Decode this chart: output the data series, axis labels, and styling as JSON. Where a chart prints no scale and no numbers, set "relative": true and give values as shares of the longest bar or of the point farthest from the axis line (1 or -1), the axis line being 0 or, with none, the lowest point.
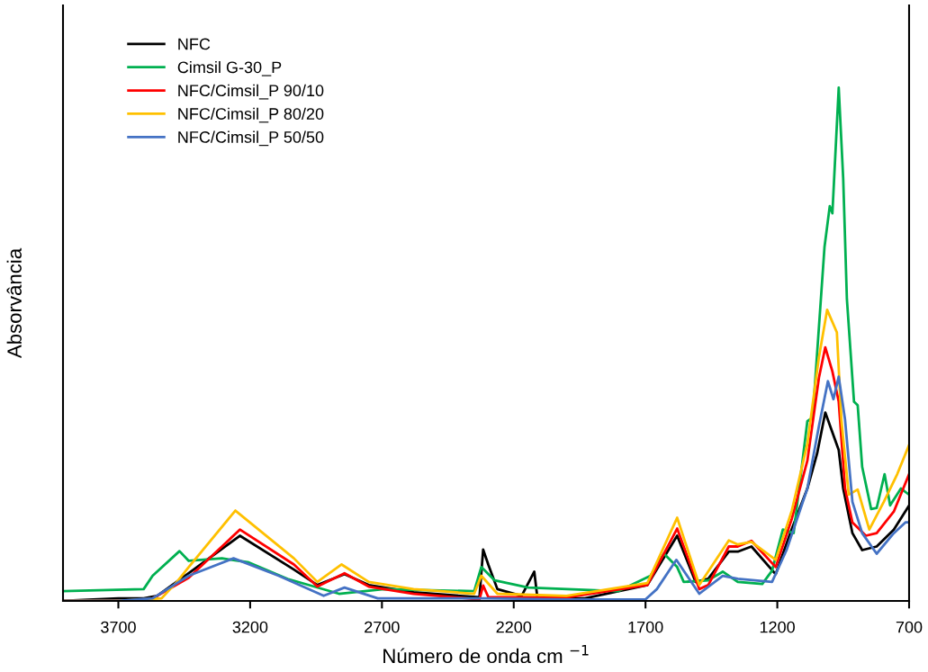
{
  "chart_data": {
    "type": "line",
    "relative": true,
    "xlabel": "Número de onda cm $^{−1}$",
    "ylabel": "Absorvância",
    "xlim": [
      3910,
      700
    ],
    "xticks": [
      3700,
      3200,
      2700,
      2200,
      1700,
      1200,
      700
    ],
    "legend": "top left",
    "grid": false,
    "marker": "none",
    "line_style": "solid",
    "series": [
      {
        "name": "NFC",
        "color": "#000000",
        "x": [
          3910,
          3700,
          3604,
          3553,
          3433,
          3239,
          3034,
          2945,
          2842,
          2750,
          2580,
          2330,
          2316,
          2296,
          2262,
          2170,
          2122,
          2110,
          1930,
          1693,
          1580,
          1510,
          1462,
          1384,
          1350,
          1298,
          1206,
          1151,
          1086,
          1049,
          1018,
          967,
          950,
          915,
          878,
          823,
          758,
          700
        ],
        "values": [
          0.0,
          0.005,
          0.005,
          0.01,
          0.054,
          0.127,
          0.061,
          0.031,
          0.052,
          0.031,
          0.017,
          0.007,
          0.1,
          0.07,
          0.023,
          0.01,
          0.057,
          0.005,
          0.005,
          0.031,
          0.127,
          0.037,
          0.043,
          0.096,
          0.096,
          0.106,
          0.052,
          0.132,
          0.219,
          0.287,
          0.367,
          0.294,
          0.219,
          0.132,
          0.099,
          0.106,
          0.139,
          0.186
        ]
      },
      {
        "name": "Cimsil G-30_P",
        "color": "#00b050",
        "x": [
          3910,
          3604,
          3570,
          3468,
          3433,
          3307,
          3205,
          3058,
          2863,
          2692,
          2350,
          2323,
          2272,
          2145,
          1804,
          1681,
          1630,
          1580,
          1555,
          1462,
          1407,
          1350,
          1257,
          1220,
          1179,
          1138,
          1086,
          1066,
          1021,
          1001,
          991,
          967,
          950,
          936,
          909,
          895,
          878,
          844,
          823,
          793,
          772,
          731,
          700
        ],
        "values": [
          0.019,
          0.023,
          0.049,
          0.097,
          0.078,
          0.083,
          0.075,
          0.043,
          0.014,
          0.023,
          0.019,
          0.066,
          0.04,
          0.026,
          0.019,
          0.049,
          0.092,
          0.066,
          0.037,
          0.04,
          0.057,
          0.037,
          0.033,
          0.059,
          0.139,
          0.132,
          0.35,
          0.357,
          0.689,
          0.769,
          0.755,
          1.0,
          0.823,
          0.588,
          0.388,
          0.381,
          0.261,
          0.179,
          0.181,
          0.247,
          0.186,
          0.219,
          0.207
        ]
      },
      {
        "name": "NFC/Cimsil_P 90/10",
        "color": "#ff0000",
        "x": [
          3910,
          3700,
          3587,
          3433,
          3239,
          3034,
          2945,
          2842,
          2750,
          2580,
          2330,
          2316,
          2296,
          2000,
          1693,
          1580,
          1496,
          1462,
          1384,
          1350,
          1298,
          1206,
          1145,
          1086,
          1042,
          1018,
          991,
          967,
          943,
          915,
          864,
          823,
          758,
          700
        ],
        "values": [
          0.0,
          0.0,
          0.0,
          0.045,
          0.139,
          0.071,
          0.028,
          0.054,
          0.028,
          0.014,
          0.003,
          0.03,
          0.007,
          0.007,
          0.031,
          0.141,
          0.023,
          0.031,
          0.106,
          0.106,
          0.117,
          0.066,
          0.16,
          0.273,
          0.435,
          0.494,
          0.447,
          0.388,
          0.219,
          0.153,
          0.127,
          0.132,
          0.174,
          0.247
        ]
      },
      {
        "name": "NFC/Cimsil_P 80/20",
        "color": "#ffc000",
        "x": [
          3910,
          3700,
          3536,
          3478,
          3433,
          3256,
          3034,
          2945,
          2853,
          2750,
          2580,
          2350,
          2323,
          2262,
          2000,
          1693,
          1580,
          1496,
          1384,
          1350,
          1298,
          1206,
          1145,
          1086,
          1042,
          1011,
          974,
          957,
          929,
          895,
          851,
          796,
          745,
          700
        ],
        "values": [
          0.0,
          0.0,
          0.005,
          0.037,
          0.066,
          0.176,
          0.083,
          0.037,
          0.071,
          0.037,
          0.023,
          0.014,
          0.049,
          0.014,
          0.01,
          0.035,
          0.162,
          0.031,
          0.118,
          0.11,
          0.115,
          0.08,
          0.176,
          0.306,
          0.475,
          0.567,
          0.523,
          0.353,
          0.207,
          0.217,
          0.139,
          0.193,
          0.247,
          0.304
        ]
      },
      {
        "name": "NFC/Cimsil_P 50/50",
        "color": "#4472c4",
        "x": [
          3910,
          3700,
          3570,
          3433,
          3263,
          3092,
          2921,
          2842,
          2716,
          2306,
          2000,
          1700,
          1657,
          1583,
          1496,
          1407,
          1350,
          1220,
          1165,
          1086,
          1042,
          1008,
          987,
          967,
          943,
          915,
          878,
          823,
          758,
          714,
          700
        ],
        "values": [
          0.0,
          0.0,
          0.005,
          0.049,
          0.083,
          0.049,
          0.01,
          0.026,
          0.005,
          0.005,
          0.003,
          0.003,
          0.023,
          0.08,
          0.014,
          0.049,
          0.043,
          0.037,
          0.099,
          0.219,
          0.341,
          0.428,
          0.393,
          0.437,
          0.353,
          0.193,
          0.132,
          0.092,
          0.132,
          0.153,
          0.153
        ]
      }
    ]
  }
}
